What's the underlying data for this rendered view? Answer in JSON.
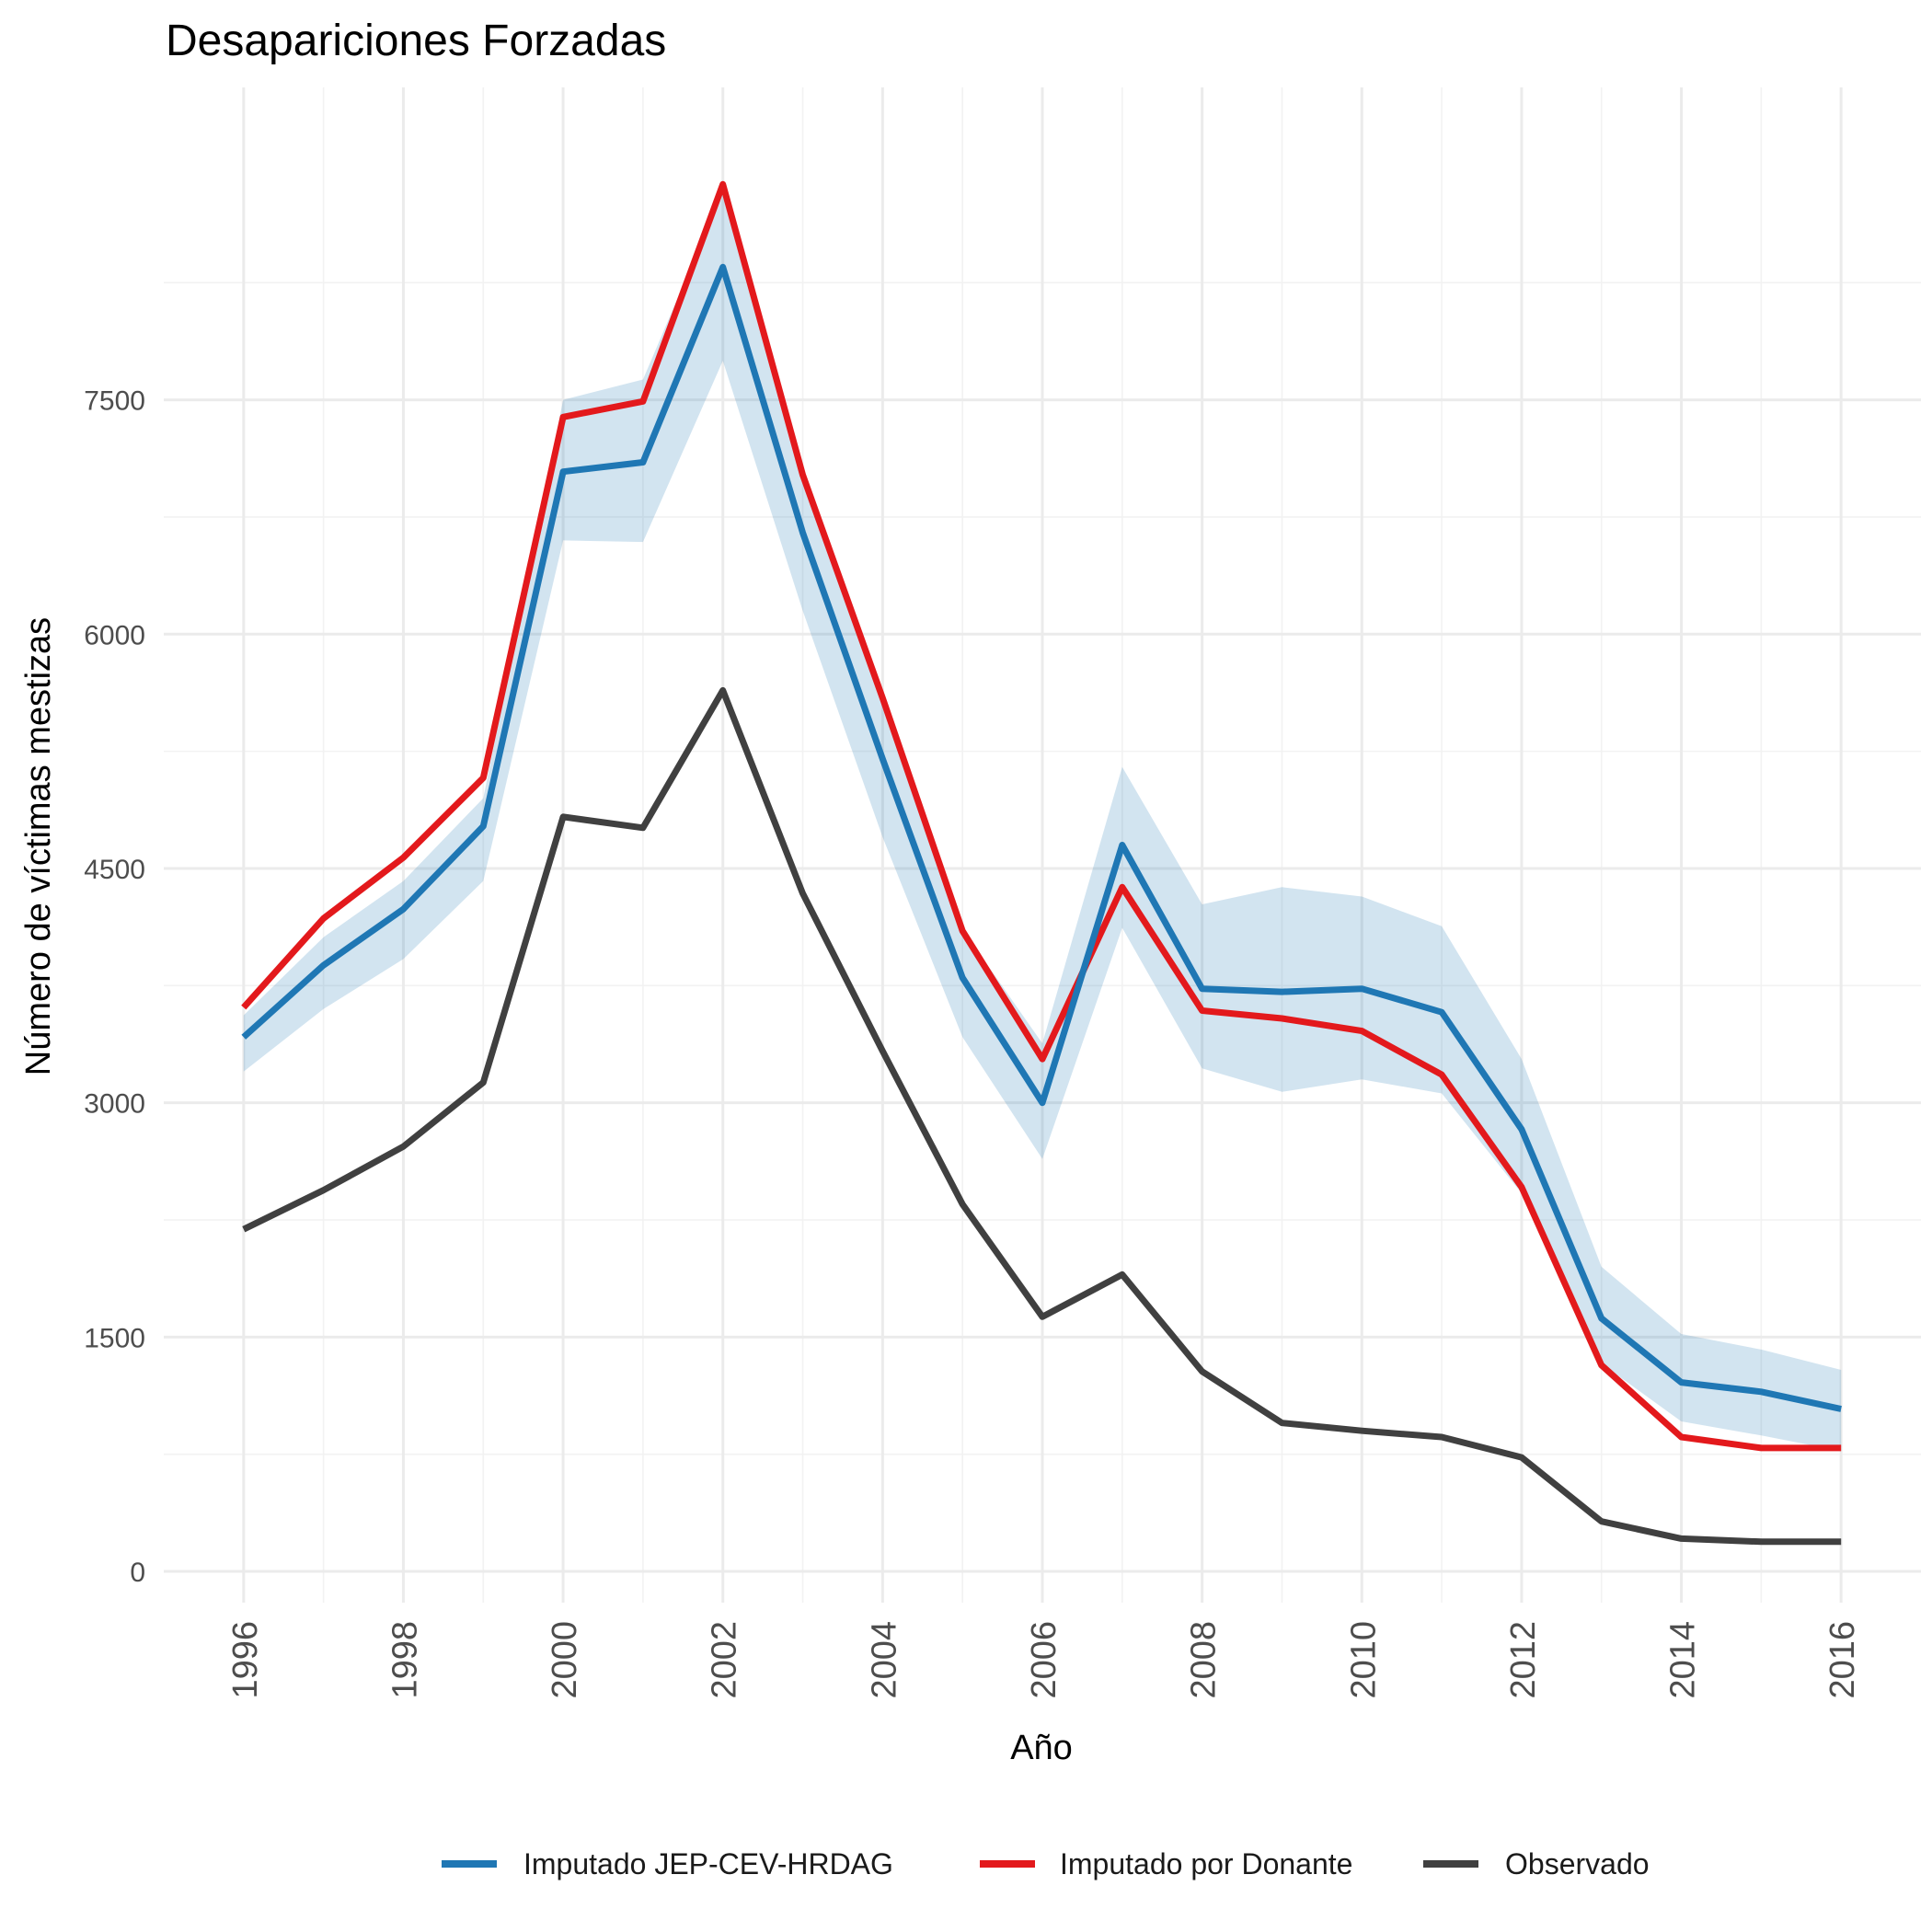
{
  "chart_data": {
    "type": "line",
    "title": "Desapariciones Forzadas",
    "xlabel": "Año",
    "ylabel": "Número de víctimas mestizas",
    "x": [
      1996,
      1997,
      1998,
      1999,
      2000,
      2001,
      2002,
      2003,
      2004,
      2005,
      2006,
      2007,
      2008,
      2009,
      2010,
      2011,
      2012,
      2013,
      2014,
      2015,
      2016
    ],
    "x_ticks": [
      "1996",
      "1998",
      "2000",
      "2002",
      "2004",
      "2006",
      "2008",
      "2010",
      "2012",
      "2014",
      "2016"
    ],
    "y_ticks": [
      "0",
      "1500",
      "3000",
      "4500",
      "6000",
      "7500"
    ],
    "xlim": [
      1995,
      2017
    ],
    "ylim": [
      -200,
      9500
    ],
    "grid": true,
    "legend_position": "bottom",
    "series": [
      {
        "name": "Imputado JEP-CEV-HRDAG",
        "color": "#1f77b4",
        "values": [
          3420,
          3880,
          4240,
          4770,
          7040,
          7100,
          8350,
          6650,
          5200,
          3800,
          3000,
          4650,
          3730,
          3710,
          3730,
          3580,
          2830,
          1620,
          1210,
          1150,
          1040
        ],
        "band_lower": [
          3200,
          3600,
          3920,
          4420,
          6600,
          6590,
          7750,
          6150,
          4700,
          3420,
          2640,
          4120,
          3220,
          3070,
          3150,
          3060,
          2420,
          1330,
          960,
          870,
          770
        ],
        "band_upper": [
          3560,
          4060,
          4420,
          4950,
          7500,
          7630,
          8830,
          7020,
          5600,
          4110,
          3380,
          5150,
          4270,
          4380,
          4320,
          4130,
          3280,
          1950,
          1520,
          1420,
          1290
        ]
      },
      {
        "name": "Imputado por Donante",
        "color": "#e3191c",
        "values": [
          3610,
          4180,
          4570,
          5080,
          7390,
          7490,
          8880,
          7020,
          5590,
          4100,
          3280,
          4380,
          3590,
          3540,
          3460,
          3180,
          2460,
          1320,
          860,
          790,
          790
        ]
      },
      {
        "name": "Observado",
        "color": "#404040",
        "values": [
          2190,
          2440,
          2720,
          3130,
          4830,
          4760,
          5640,
          4340,
          3330,
          2350,
          1630,
          1900,
          1280,
          950,
          900,
          860,
          730,
          320,
          210,
          190,
          190
        ]
      }
    ]
  }
}
